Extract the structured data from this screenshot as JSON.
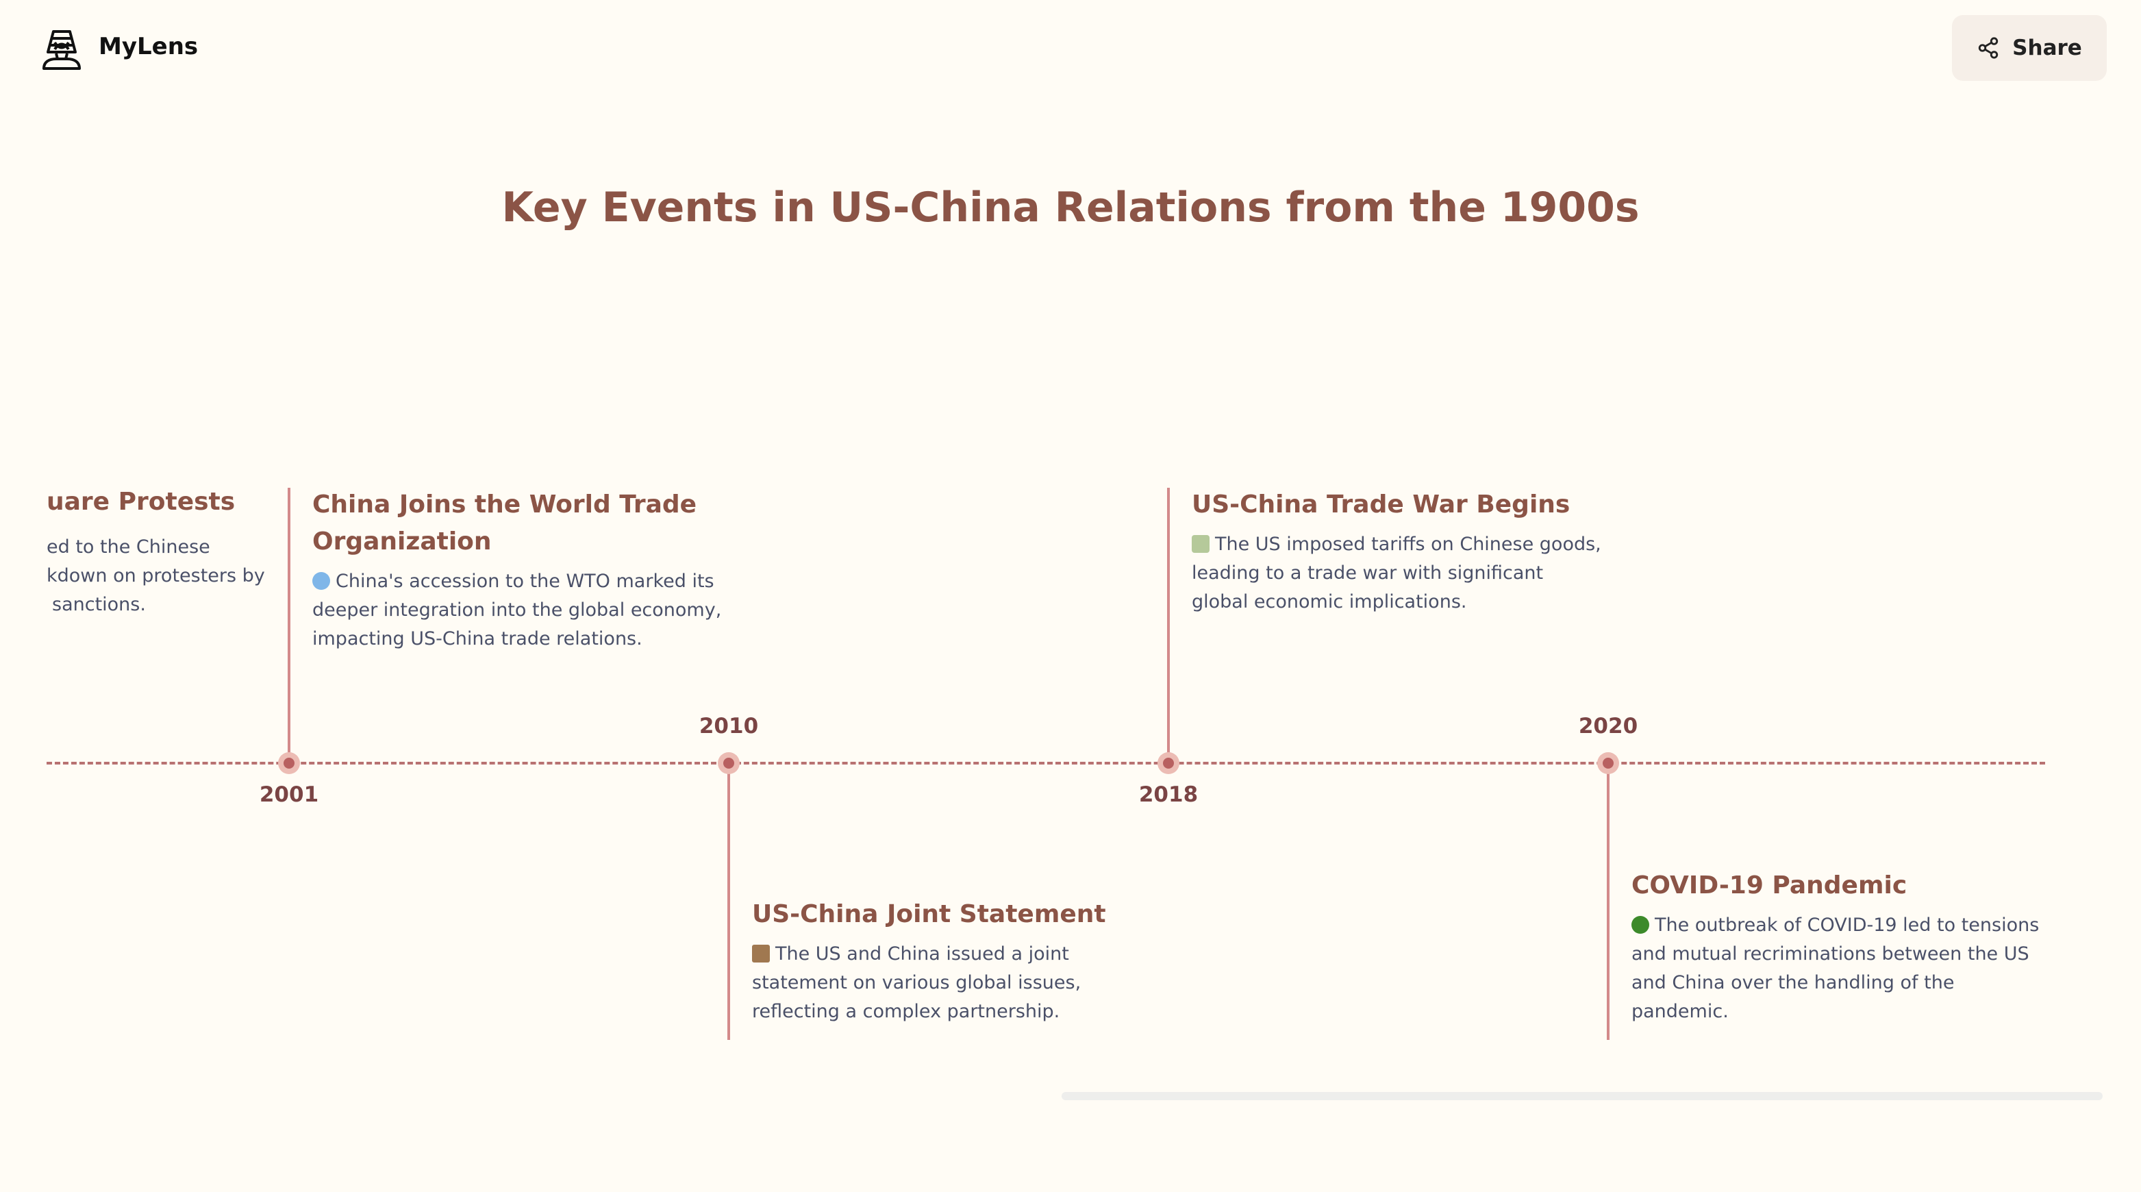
{
  "header": {
    "brand": "MyLens",
    "logo_icon": "pharaoh-icon",
    "share_label": "Share",
    "share_icon": "share-icon"
  },
  "title": "Key Events in US-China Relations from the 1900s",
  "colors": {
    "title": "#8b5446",
    "timeline": "#b87272",
    "node": "#b86060",
    "text": "#4a5068",
    "background": "#fffcf5"
  },
  "partial_event": {
    "title": "uare Protests",
    "lines": [
      "ed to the Chinese",
      "kdown on protesters by",
      "sanctions."
    ]
  },
  "events": [
    {
      "year": "2001",
      "title": "China Joins the World Trade Organization",
      "icon": "🌐",
      "description": "China's accession to the WTO marked its deeper integration into the global economy, impacting US-China trade relations."
    },
    {
      "year": "2010",
      "title": "US-China Joint Statement",
      "icon": "📜",
      "description": "The US and China issued a joint statement on various global issues, reflecting a complex partnership."
    },
    {
      "year": "2018",
      "title": "US-China Trade War Begins",
      "icon": "💸",
      "description": "The US imposed tariffs on Chinese goods, leading to a trade war with significant global economic implications."
    },
    {
      "year": "2020",
      "title": "COVID-19 Pandemic",
      "icon": "🦠",
      "description": "The outbreak of COVID-19 led to tensions and mutual recriminations between the US and China over the handling of the pandemic."
    }
  ]
}
